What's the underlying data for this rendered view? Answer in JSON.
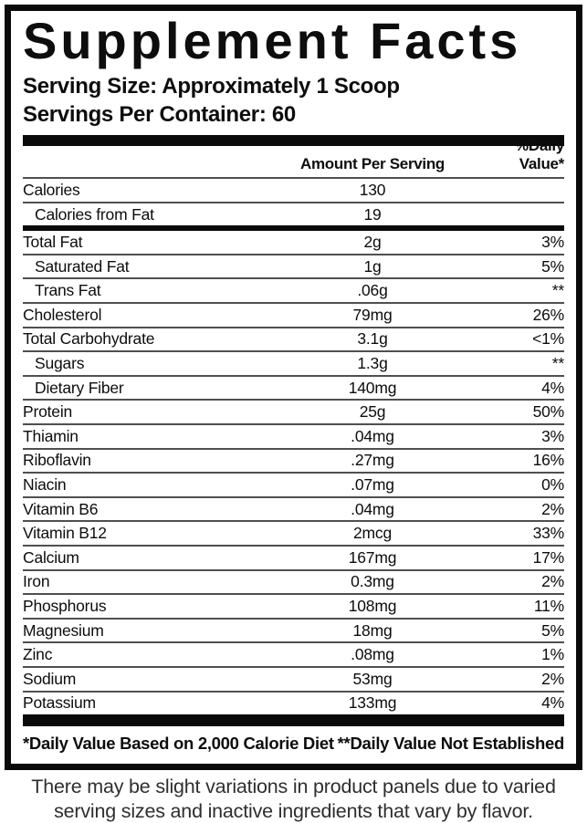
{
  "label": {
    "title": "Supplement Facts",
    "serving_size": "Serving Size: Approximately 1 Scoop",
    "servings_per_container": "Servings Per Container: 60",
    "columns": {
      "amount": "Amount Per Serving",
      "dv": "%Daily Value*"
    },
    "rows": [
      {
        "name": "Calories",
        "amount": "130",
        "dv": "",
        "indent": false,
        "thick_after": false,
        "no_line": false
      },
      {
        "name": "Calories from Fat",
        "amount": "19",
        "dv": "",
        "indent": true,
        "thick_after": true,
        "no_line": true
      },
      {
        "name": "Total Fat",
        "amount": "2g",
        "dv": "3%",
        "indent": false,
        "thick_after": false,
        "no_line": false
      },
      {
        "name": "Saturated Fat",
        "amount": "1g",
        "dv": "5%",
        "indent": true,
        "thick_after": false,
        "no_line": false
      },
      {
        "name": "Trans Fat",
        "amount": ".06g",
        "dv": "**",
        "indent": true,
        "thick_after": false,
        "no_line": false
      },
      {
        "name": "Cholesterol",
        "amount": "79mg",
        "dv": "26%",
        "indent": false,
        "thick_after": false,
        "no_line": false
      },
      {
        "name": "Total Carbohydrate",
        "amount": "3.1g",
        "dv": "<1%",
        "indent": false,
        "thick_after": false,
        "no_line": false
      },
      {
        "name": "Sugars",
        "amount": "1.3g",
        "dv": "**",
        "indent": true,
        "thick_after": false,
        "no_line": false
      },
      {
        "name": "Dietary Fiber",
        "amount": "140mg",
        "dv": "4%",
        "indent": true,
        "thick_after": false,
        "no_line": false
      },
      {
        "name": "Protein",
        "amount": "25g",
        "dv": "50%",
        "indent": false,
        "thick_after": false,
        "no_line": false
      },
      {
        "name": "Thiamin",
        "amount": ".04mg",
        "dv": "3%",
        "indent": false,
        "thick_after": false,
        "no_line": false
      },
      {
        "name": "Riboflavin",
        "amount": ".27mg",
        "dv": "16%",
        "indent": false,
        "thick_after": false,
        "no_line": false
      },
      {
        "name": "Niacin",
        "amount": ".07mg",
        "dv": "0%",
        "indent": false,
        "thick_after": false,
        "no_line": false
      },
      {
        "name": "Vitamin B6",
        "amount": ".04mg",
        "dv": "2%",
        "indent": false,
        "thick_after": false,
        "no_line": false
      },
      {
        "name": "Vitamin B12",
        "amount": "2mcg",
        "dv": "33%",
        "indent": false,
        "thick_after": false,
        "no_line": false
      },
      {
        "name": "Calcium",
        "amount": "167mg",
        "dv": "17%",
        "indent": false,
        "thick_after": false,
        "no_line": false
      },
      {
        "name": "Iron",
        "amount": "0.3mg",
        "dv": "2%",
        "indent": false,
        "thick_after": false,
        "no_line": false
      },
      {
        "name": "Phosphorus",
        "amount": "108mg",
        "dv": "11%",
        "indent": false,
        "thick_after": false,
        "no_line": false
      },
      {
        "name": "Magnesium",
        "amount": "18mg",
        "dv": "5%",
        "indent": false,
        "thick_after": false,
        "no_line": false
      },
      {
        "name": "Zinc",
        "amount": ".08mg",
        "dv": "1%",
        "indent": false,
        "thick_after": false,
        "no_line": false
      },
      {
        "name": "Sodium",
        "amount": "53mg",
        "dv": "2%",
        "indent": false,
        "thick_after": false,
        "no_line": false
      },
      {
        "name": "Potassium",
        "amount": "133mg",
        "dv": "4%",
        "indent": false,
        "thick_after": false,
        "no_line": true
      }
    ],
    "footnotes": {
      "dv_based": "*Daily Value Based on 2,000 Calorie Diet",
      "dv_not_established": "**Daily Value Not Established"
    }
  },
  "disclaimer": {
    "line1": "There may be slight variations in product panels due to varied",
    "line2": "serving sizes and inactive ingredients that vary by flavor."
  },
  "colors": {
    "ink": "#0a0a0a",
    "rule": "#4f4f4f",
    "disclaimer_text": "#2e2e2e",
    "background": "#ffffff"
  }
}
